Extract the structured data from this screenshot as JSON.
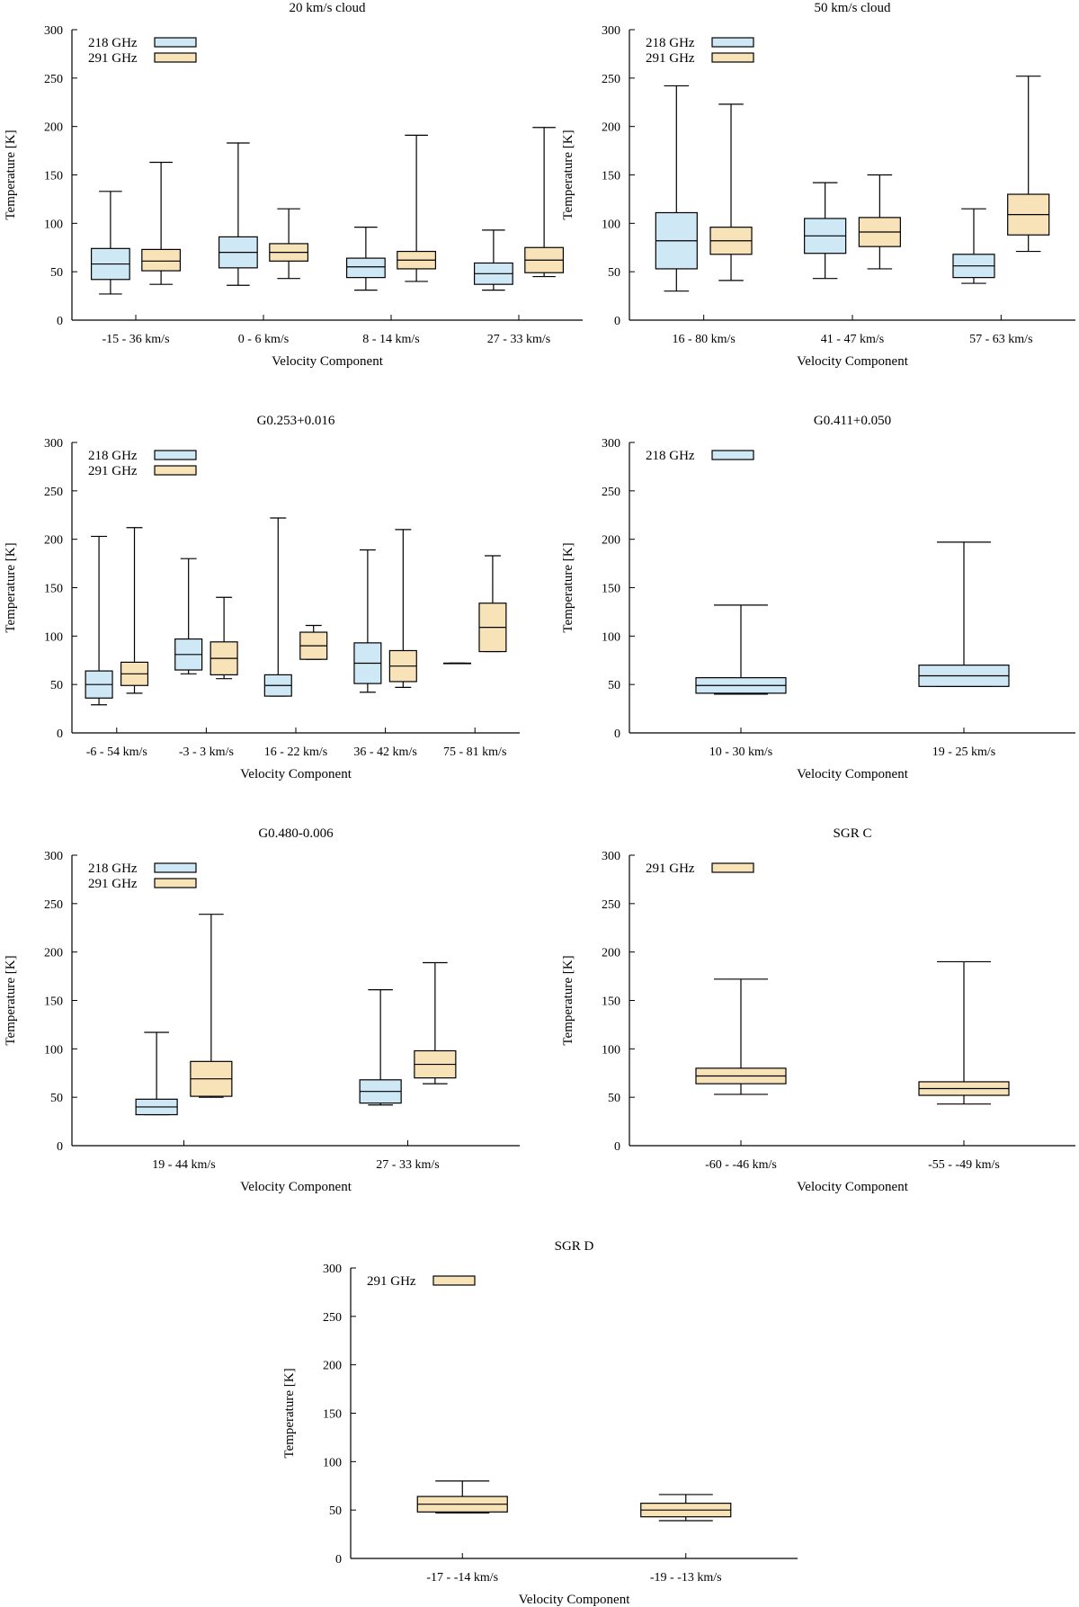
{
  "colors": {
    "f218": "#cfe8f5",
    "f291": "#f8e3b9",
    "axis": "#000000"
  },
  "legend_labels": {
    "f218": "218 GHz",
    "f291": "291 GHz"
  },
  "chart_data": [
    {
      "type": "boxplot",
      "title": "20 km/s cloud",
      "xlabel": "Velocity Component",
      "ylabel": "Temperature [K]",
      "ylim": [
        0,
        300
      ],
      "yticks": [
        0,
        50,
        100,
        150,
        200,
        250,
        300
      ],
      "legend": [
        "218 GHz",
        "291 GHz"
      ],
      "categories": [
        {
          "label": "-15 - 36 km/s",
          "boxes": [
            {
              "series": "218 GHz",
              "min": 27,
              "q1": 42,
              "median": 58,
              "q3": 74,
              "max": 133
            },
            {
              "series": "291 GHz",
              "min": 37,
              "q1": 51,
              "median": 61,
              "q3": 73,
              "max": 163
            }
          ]
        },
        {
          "label": "0 - 6 km/s",
          "boxes": [
            {
              "series": "218 GHz",
              "min": 36,
              "q1": 54,
              "median": 70,
              "q3": 86,
              "max": 183
            },
            {
              "series": "291 GHz",
              "min": 43,
              "q1": 61,
              "median": 70,
              "q3": 79,
              "max": 115
            }
          ]
        },
        {
          "label": "8 - 14 km/s",
          "boxes": [
            {
              "series": "218 GHz",
              "min": 31,
              "q1": 44,
              "median": 55,
              "q3": 64,
              "max": 96
            },
            {
              "series": "291 GHz",
              "min": 40,
              "q1": 53,
              "median": 62,
              "q3": 71,
              "max": 191
            }
          ]
        },
        {
          "label": "27 - 33 km/s",
          "boxes": [
            {
              "series": "218 GHz",
              "min": 31,
              "q1": 37,
              "median": 48,
              "q3": 59,
              "max": 93
            },
            {
              "series": "291 GHz",
              "min": 45,
              "q1": 49,
              "median": 62,
              "q3": 75,
              "max": 199
            }
          ]
        }
      ]
    },
    {
      "type": "boxplot",
      "title": "50 km/s cloud",
      "xlabel": "Velocity Component",
      "ylabel": "Temperature [K]",
      "ylim": [
        0,
        300
      ],
      "yticks": [
        0,
        50,
        100,
        150,
        200,
        250,
        300
      ],
      "legend": [
        "218 GHz",
        "291 GHz"
      ],
      "categories": [
        {
          "label": "16 - 80 km/s",
          "boxes": [
            {
              "series": "218 GHz",
              "min": 30,
              "q1": 53,
              "median": 82,
              "q3": 111,
              "max": 242
            },
            {
              "series": "291 GHz",
              "min": 41,
              "q1": 68,
              "median": 82,
              "q3": 96,
              "max": 223
            }
          ]
        },
        {
          "label": "41 - 47 km/s",
          "boxes": [
            {
              "series": "218 GHz",
              "min": 43,
              "q1": 69,
              "median": 87,
              "q3": 105,
              "max": 142
            },
            {
              "series": "291 GHz",
              "min": 53,
              "q1": 76,
              "median": 91,
              "q3": 106,
              "max": 150
            }
          ]
        },
        {
          "label": "57 - 63 km/s",
          "boxes": [
            {
              "series": "218 GHz",
              "min": 38,
              "q1": 44,
              "median": 56,
              "q3": 68,
              "max": 115
            },
            {
              "series": "291 GHz",
              "min": 71,
              "q1": 88,
              "median": 109,
              "q3": 130,
              "max": 252
            }
          ]
        }
      ]
    },
    {
      "type": "boxplot",
      "title": "G0.253+0.016",
      "xlabel": "Velocity Component",
      "ylabel": "Temperature [K]",
      "ylim": [
        0,
        300
      ],
      "yticks": [
        0,
        50,
        100,
        150,
        200,
        250,
        300
      ],
      "legend": [
        "218 GHz",
        "291 GHz"
      ],
      "categories": [
        {
          "label": "-6 - 54 km/s",
          "boxes": [
            {
              "series": "218 GHz",
              "min": 29,
              "q1": 36,
              "median": 50,
              "q3": 64,
              "max": 203
            },
            {
              "series": "291 GHz",
              "min": 41,
              "q1": 49,
              "median": 61,
              "q3": 73,
              "max": 212
            }
          ]
        },
        {
          "label": "-3 - 3 km/s",
          "boxes": [
            {
              "series": "218 GHz",
              "min": 61,
              "q1": 65,
              "median": 81,
              "q3": 97,
              "max": 180
            },
            {
              "series": "291 GHz",
              "min": 56,
              "q1": 60,
              "median": 77,
              "q3": 94,
              "max": 140
            }
          ]
        },
        {
          "label": "16 - 22 km/s",
          "boxes": [
            {
              "series": "218 GHz",
              "min": 38,
              "q1": 38,
              "median": 49,
              "q3": 60,
              "max": 222
            },
            {
              "series": "291 GHz",
              "min": 76,
              "q1": 76,
              "median": 90,
              "q3": 104,
              "max": 111
            }
          ]
        },
        {
          "label": "36 - 42 km/s",
          "boxes": [
            {
              "series": "218 GHz",
              "min": 42,
              "q1": 51,
              "median": 72,
              "q3": 93,
              "max": 189
            },
            {
              "series": "291 GHz",
              "min": 47,
              "q1": 53,
              "median": 69,
              "q3": 85,
              "max": 210
            }
          ]
        },
        {
          "label": "75 - 81 km/s",
          "boxes": [
            {
              "series": "218 GHz",
              "min": 72,
              "q1": 72,
              "median": 72,
              "q3": 72,
              "max": 72
            },
            {
              "series": "291 GHz",
              "min": 84,
              "q1": 84,
              "median": 109,
              "q3": 134,
              "max": 183
            }
          ]
        }
      ]
    },
    {
      "type": "boxplot",
      "title": "G0.411+0.050",
      "xlabel": "Velocity Component",
      "ylabel": "Temperature [K]",
      "ylim": [
        0,
        300
      ],
      "yticks": [
        0,
        50,
        100,
        150,
        200,
        250,
        300
      ],
      "legend": [
        "218 GHz"
      ],
      "categories": [
        {
          "label": "10 - 30 km/s",
          "boxes": [
            {
              "series": "218 GHz",
              "min": 40,
              "q1": 41,
              "median": 49,
              "q3": 57,
              "max": 132
            }
          ]
        },
        {
          "label": "19 - 25 km/s",
          "boxes": [
            {
              "series": "218 GHz",
              "min": 48,
              "q1": 48,
              "median": 59,
              "q3": 70,
              "max": 197
            }
          ]
        }
      ]
    },
    {
      "type": "boxplot",
      "title": "G0.480-0.006",
      "xlabel": "Velocity Component",
      "ylabel": "Temperature [K]",
      "ylim": [
        0,
        300
      ],
      "yticks": [
        0,
        50,
        100,
        150,
        200,
        250,
        300
      ],
      "legend": [
        "218 GHz",
        "291 GHz"
      ],
      "categories": [
        {
          "label": "19 - 44 km/s",
          "boxes": [
            {
              "series": "218 GHz",
              "min": 32,
              "q1": 32,
              "median": 40,
              "q3": 48,
              "max": 117
            },
            {
              "series": "291 GHz",
              "min": 50,
              "q1": 51,
              "median": 69,
              "q3": 87,
              "max": 239
            }
          ]
        },
        {
          "label": "27 - 33 km/s",
          "boxes": [
            {
              "series": "218 GHz",
              "min": 42,
              "q1": 44,
              "median": 56,
              "q3": 68,
              "max": 161
            },
            {
              "series": "291 GHz",
              "min": 64,
              "q1": 70,
              "median": 84,
              "q3": 98,
              "max": 189
            }
          ]
        }
      ]
    },
    {
      "type": "boxplot",
      "title": "SGR C",
      "xlabel": "Velocity Component",
      "ylabel": "Temperature [K]",
      "ylim": [
        0,
        300
      ],
      "yticks": [
        0,
        50,
        100,
        150,
        200,
        250,
        300
      ],
      "legend": [
        "291 GHz"
      ],
      "categories": [
        {
          "label": "-60 - -46 km/s",
          "boxes": [
            {
              "series": "291 GHz",
              "min": 53,
              "q1": 64,
              "median": 72,
              "q3": 80,
              "max": 172
            }
          ]
        },
        {
          "label": "-55 - -49 km/s",
          "boxes": [
            {
              "series": "291 GHz",
              "min": 43,
              "q1": 52,
              "median": 59,
              "q3": 66,
              "max": 190
            }
          ]
        }
      ]
    },
    {
      "type": "boxplot",
      "title": "SGR D",
      "xlabel": "Velocity Component",
      "ylabel": "Temperature [K]",
      "ylim": [
        0,
        300
      ],
      "yticks": [
        0,
        50,
        100,
        150,
        200,
        250,
        300
      ],
      "legend": [
        "291 GHz"
      ],
      "categories": [
        {
          "label": "-17 - -14 km/s",
          "boxes": [
            {
              "series": "291 GHz",
              "min": 47,
              "q1": 48,
              "median": 56,
              "q3": 64,
              "max": 80
            }
          ]
        },
        {
          "label": "-19 - -13 km/s",
          "boxes": [
            {
              "series": "291 GHz",
              "min": 39,
              "q1": 43,
              "median": 50,
              "q3": 57,
              "max": 66
            }
          ]
        }
      ]
    }
  ]
}
